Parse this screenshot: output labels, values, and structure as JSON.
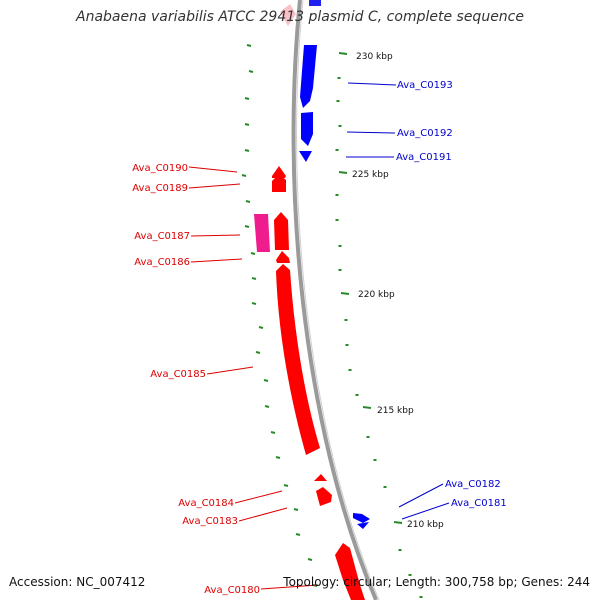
{
  "title": "Anabaena variabilis ATCC 29413 plasmid C, complete sequence",
  "accession": "Accession: NC_007412",
  "summary": "Topology: circular; Length: 300,758 bp; Genes: 244",
  "colors": {
    "backbone": "#999999",
    "forward_gene": "#0000ff",
    "reverse_gene": "#ff0000",
    "reverse_gene_alt": "#ee1c8c",
    "gc_marks": "#2a8a2a",
    "label_forward": "#0000cc",
    "label_reverse": "#dd0000"
  },
  "scale_ticks": [
    {
      "label": "230 kbp"
    },
    {
      "label": "225 kbp"
    },
    {
      "label": "220 kbp"
    },
    {
      "label": "215 kbp"
    },
    {
      "label": "210 kbp"
    }
  ],
  "genes": [
    {
      "label": "Ava_C0193",
      "strand": "forward"
    },
    {
      "label": "Ava_C0192",
      "strand": "forward"
    },
    {
      "label": "Ava_C0191",
      "strand": "forward"
    },
    {
      "label": "Ava_C0190",
      "strand": "reverse"
    },
    {
      "label": "Ava_C0189",
      "strand": "reverse"
    },
    {
      "label": "Ava_C0187",
      "strand": "reverse"
    },
    {
      "label": "Ava_C0186",
      "strand": "reverse"
    },
    {
      "label": "Ava_C0185",
      "strand": "reverse"
    },
    {
      "label": "Ava_C0184",
      "strand": "reverse"
    },
    {
      "label": "Ava_C0183",
      "strand": "reverse"
    },
    {
      "label": "Ava_C0182",
      "strand": "forward"
    },
    {
      "label": "Ava_C0181",
      "strand": "forward"
    },
    {
      "label": "Ava_C0180",
      "strand": "reverse"
    }
  ]
}
